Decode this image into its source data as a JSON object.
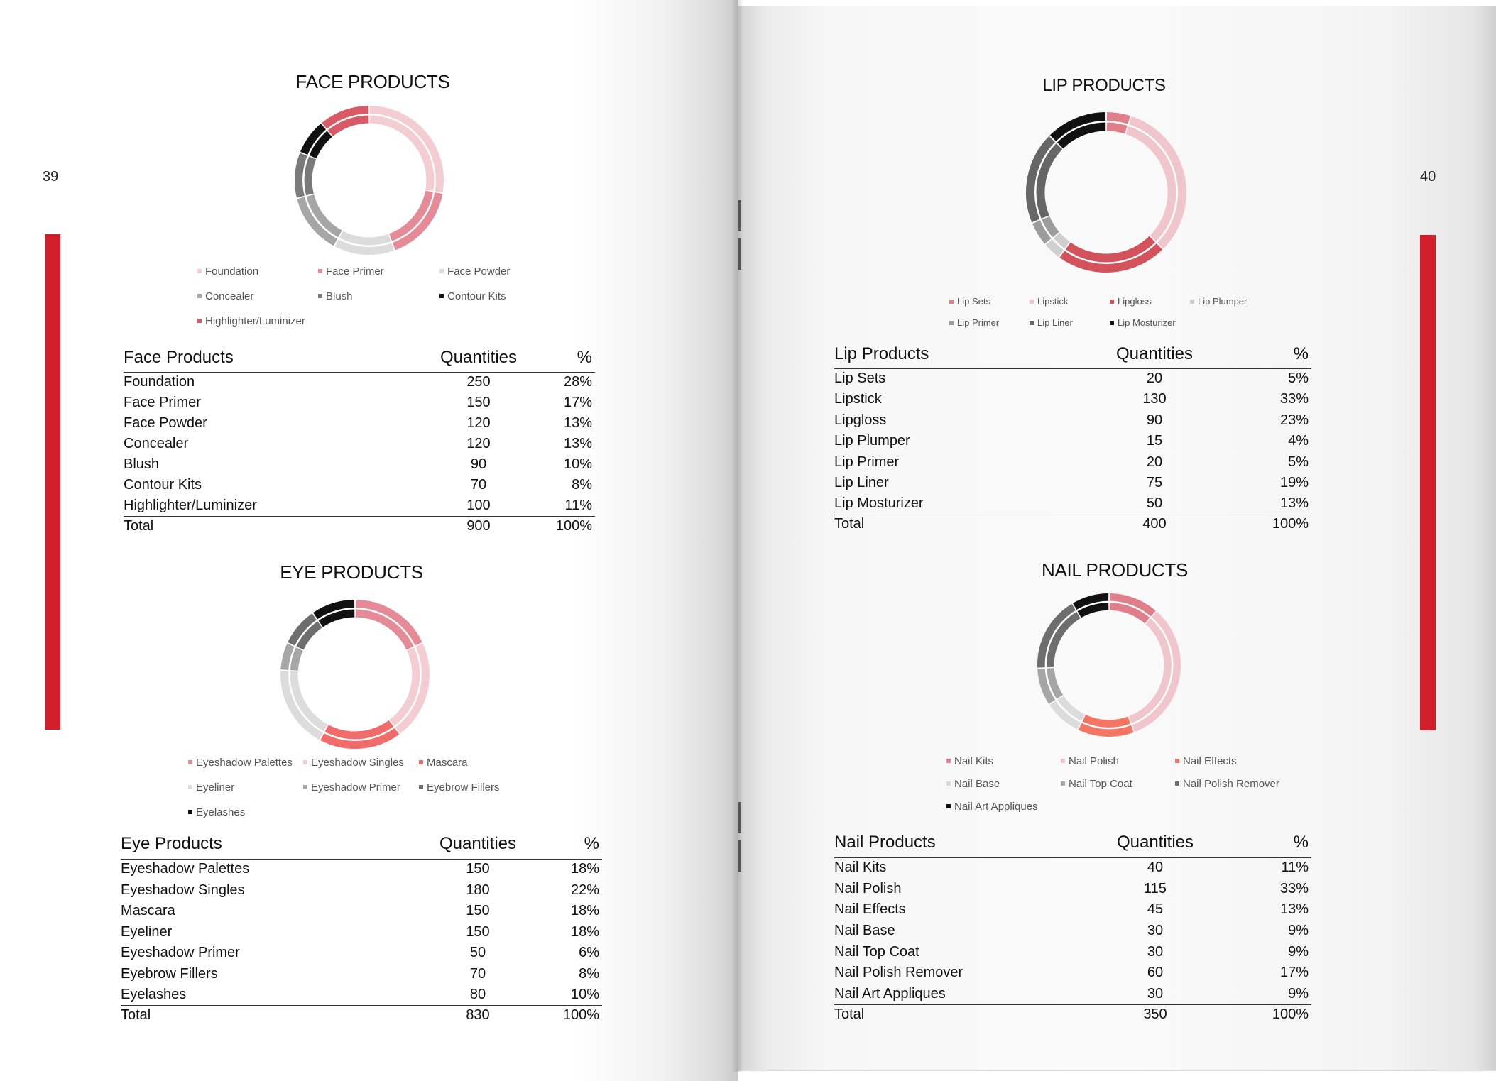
{
  "pages": {
    "left_number": "39",
    "right_number": "40"
  },
  "colors": {
    "accent": "#d21f2b"
  },
  "sections": [
    {
      "id": "face",
      "title": "FACE PRODUCTS",
      "header": [
        "Face Products",
        "Quantities",
        "%"
      ],
      "items": [
        {
          "label": "Foundation",
          "qty": "250",
          "pct": "28%"
        },
        {
          "label": "Face Primer",
          "qty": "150",
          "pct": "17%"
        },
        {
          "label": "Face Powder",
          "qty": "120",
          "pct": "13%"
        },
        {
          "label": "Concealer",
          "qty": "120",
          "pct": "13%"
        },
        {
          "label": "Blush",
          "qty": "90",
          "pct": "10%"
        },
        {
          "label": "Contour Kits",
          "qty": "70",
          "pct": "8%"
        },
        {
          "label": "Highlighter/Luminizer",
          "qty": "100",
          "pct": "11%"
        }
      ],
      "total": {
        "label": "Total",
        "qty": "900",
        "pct": "100%"
      }
    },
    {
      "id": "eye",
      "title": "EYE PRODUCTS",
      "header": [
        "Eye Products",
        "Quantities",
        "%"
      ],
      "items": [
        {
          "label": "Eyeshadow Palettes",
          "qty": "150",
          "pct": "18%"
        },
        {
          "label": "Eyeshadow Singles",
          "qty": "180",
          "pct": "22%"
        },
        {
          "label": "Mascara",
          "qty": "150",
          "pct": "18%"
        },
        {
          "label": "Eyeliner",
          "qty": "150",
          "pct": "18%"
        },
        {
          "label": "Eyeshadow Primer",
          "qty": "50",
          "pct": "6%"
        },
        {
          "label": "Eyebrow Fillers",
          "qty": "70",
          "pct": "8%"
        },
        {
          "label": "Eyelashes",
          "qty": "80",
          "pct": "10%"
        }
      ],
      "total": {
        "label": "Total",
        "qty": "830",
        "pct": "100%"
      }
    },
    {
      "id": "lip",
      "title": "LIP PRODUCTS",
      "header": [
        "Lip Products",
        "Quantities",
        "%"
      ],
      "items": [
        {
          "label": "Lip Sets",
          "qty": "20",
          "pct": "5%"
        },
        {
          "label": "Lipstick",
          "qty": "130",
          "pct": "33%"
        },
        {
          "label": "Lipgloss",
          "qty": "90",
          "pct": "23%"
        },
        {
          "label": "Lip Plumper",
          "qty": "15",
          "pct": "4%"
        },
        {
          "label": "Lip Primer",
          "qty": "20",
          "pct": "5%"
        },
        {
          "label": "Lip Liner",
          "qty": "75",
          "pct": "19%"
        },
        {
          "label": "Lip Mosturizer",
          "qty": "50",
          "pct": "13%"
        }
      ],
      "total": {
        "label": "Total",
        "qty": "400",
        "pct": "100%"
      }
    },
    {
      "id": "nail",
      "title": "NAIL PRODUCTS",
      "header": [
        "Nail Products",
        "Quantities",
        "%"
      ],
      "items": [
        {
          "label": "Nail Kits",
          "qty": "40",
          "pct": "11%"
        },
        {
          "label": "Nail Polish",
          "qty": "115",
          "pct": "33%"
        },
        {
          "label": "Nail Effects",
          "qty": "45",
          "pct": "13%"
        },
        {
          "label": "Nail Base",
          "qty": "30",
          "pct": "9%"
        },
        {
          "label": "Nail Top Coat",
          "qty": "30",
          "pct": "9%"
        },
        {
          "label": "Nail Polish Remover",
          "qty": "60",
          "pct": "17%"
        },
        {
          "label": "Nail Art Appliques",
          "qty": "30",
          "pct": "9%"
        }
      ],
      "total": {
        "label": "Total",
        "qty": "350",
        "pct": "100%"
      }
    }
  ],
  "chart_data": [
    {
      "type": "pie",
      "style": "doughnut",
      "title": "FACE PRODUCTS",
      "categories": [
        "Foundation",
        "Face Primer",
        "Face Powder",
        "Concealer",
        "Blush",
        "Contour Kits",
        "Highlighter/Luminizer"
      ],
      "values": [
        250,
        150,
        120,
        120,
        90,
        70,
        100
      ],
      "colors": [
        "#f4cdd3",
        "#e58a96",
        "#dcdcdc",
        "#a6a6a6",
        "#7a7a7a",
        "#111111",
        "#d95a64"
      ],
      "legend": "bottom"
    },
    {
      "type": "pie",
      "style": "doughnut",
      "title": "EYE PRODUCTS",
      "categories": [
        "Eyeshadow Palettes",
        "Eyeshadow Singles",
        "Mascara",
        "Eyeliner",
        "Eyeshadow Primer",
        "Eyebrow Fillers",
        "Eyelashes"
      ],
      "values": [
        150,
        180,
        150,
        150,
        50,
        70,
        80
      ],
      "colors": [
        "#e58a96",
        "#f4cdd3",
        "#f26b6b",
        "#dcdcdc",
        "#a6a6a6",
        "#6e6e6e",
        "#111111"
      ],
      "legend": "bottom"
    },
    {
      "type": "pie",
      "style": "doughnut",
      "title": "LIP PRODUCTS",
      "categories": [
        "Lip Sets",
        "Lipstick",
        "Lipgloss",
        "Lip Plumper",
        "Lip Primer",
        "Lip Liner",
        "Lip Mosturizer"
      ],
      "values": [
        20,
        130,
        90,
        15,
        20,
        75,
        50
      ],
      "colors": [
        "#e07f8a",
        "#f0c6cc",
        "#d4525c",
        "#cfcfcf",
        "#9c9c9c",
        "#666666",
        "#111111"
      ],
      "legend": "bottom"
    },
    {
      "type": "pie",
      "style": "doughnut",
      "title": "NAIL PRODUCTS",
      "categories": [
        "Nail Kits",
        "Nail Polish",
        "Nail Effects",
        "Nail Base",
        "Nail Top Coat",
        "Nail Polish Remover",
        "Nail Art Appliques"
      ],
      "values": [
        40,
        115,
        45,
        30,
        30,
        60,
        30
      ],
      "colors": [
        "#e07f8a",
        "#f0c6cc",
        "#f47563",
        "#dcdcdc",
        "#a6a6a6",
        "#6e6e6e",
        "#111111"
      ],
      "legend": "bottom"
    }
  ]
}
